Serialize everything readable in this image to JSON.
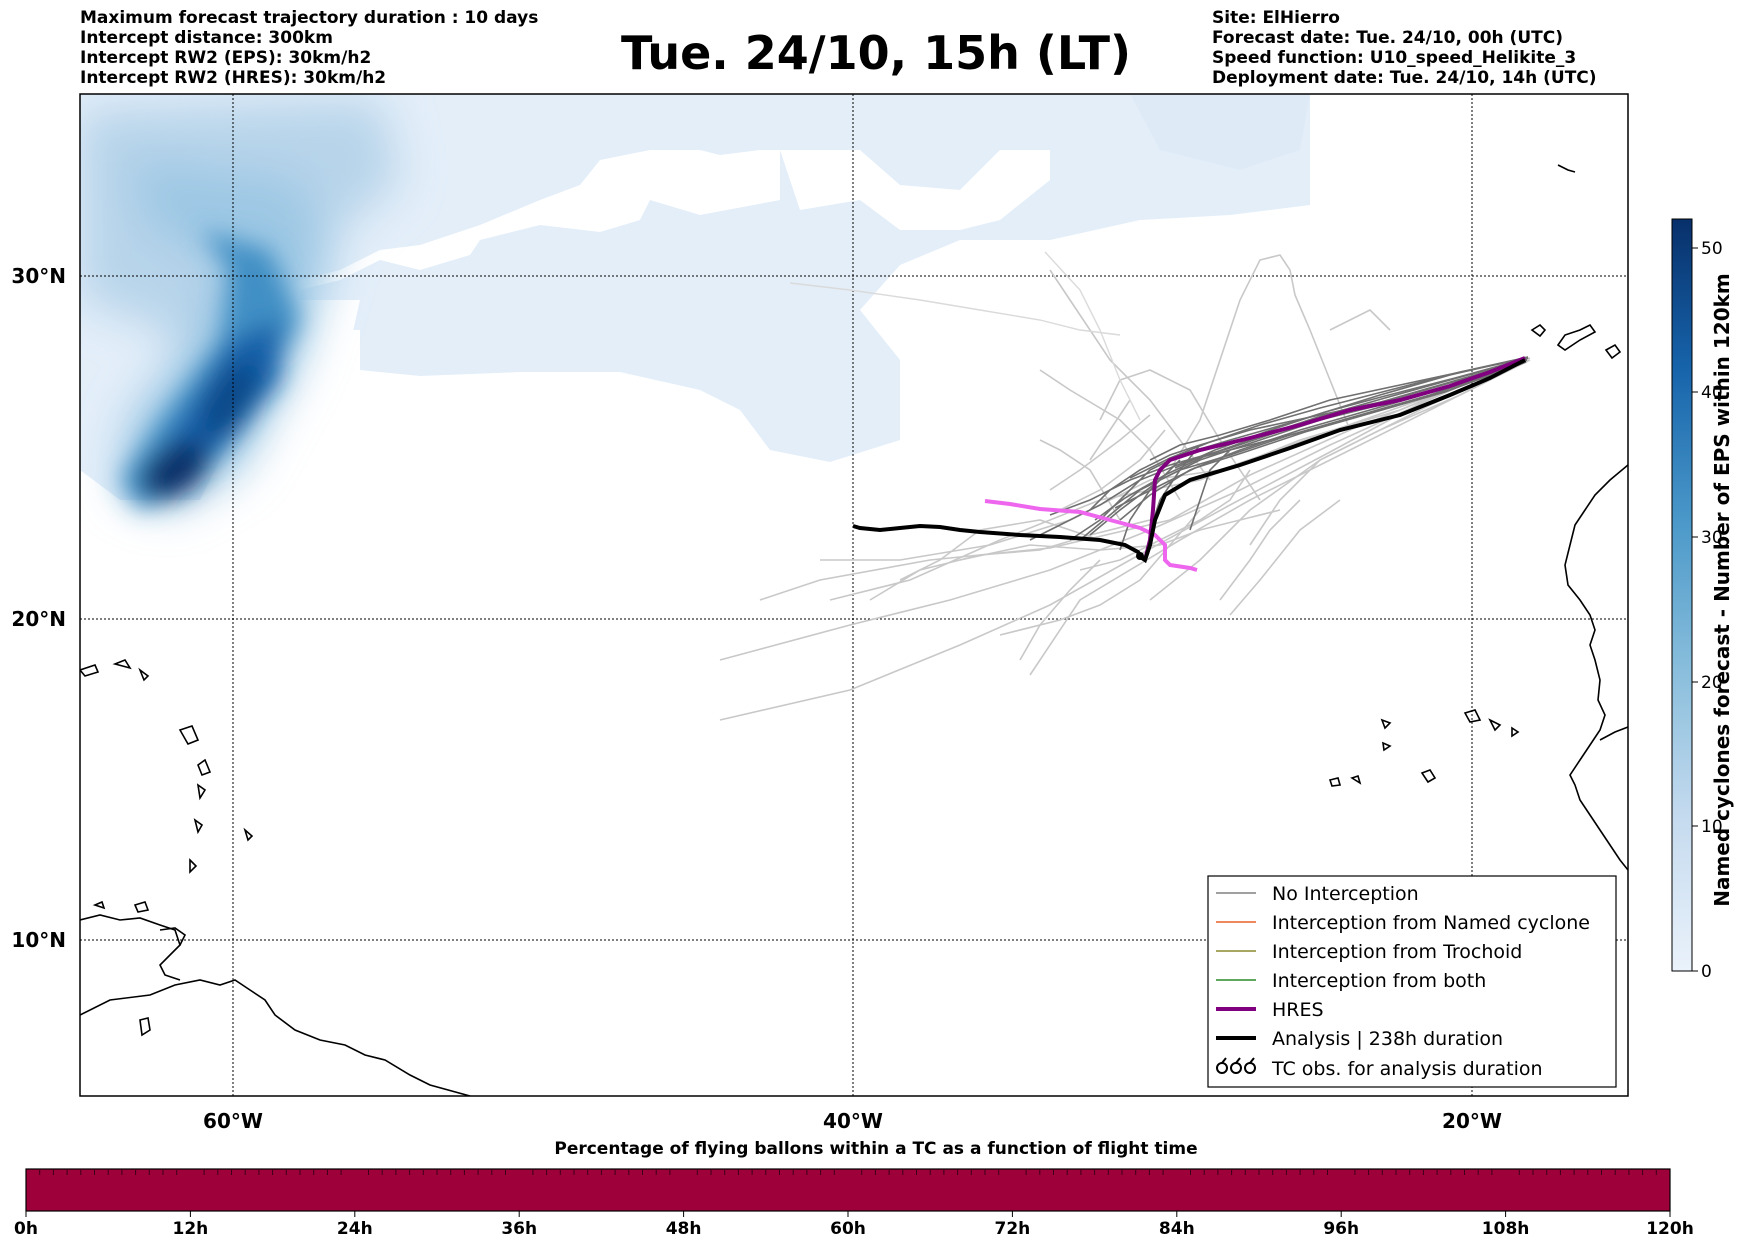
{
  "header": {
    "left_lines": [
      "Maximum forecast trajectory duration : 10 days",
      "Intercept distance: 300km",
      "Intercept RW2 (EPS):  30km/h2",
      "Intercept RW2 (HRES): 30km/h2"
    ],
    "title": "Tue. 24/10, 15h (LT)",
    "right_lines": [
      "Site: ElHierro",
      "Forecast date: Tue. 24/10, 00h (UTC)",
      "Speed function: U10_speed_Helikite_3",
      "Deployment date: Tue. 24/10, 14h (UTC)"
    ]
  },
  "map": {
    "lon_labels": [
      "60°W",
      "40°W",
      "20°W"
    ],
    "lat_labels": [
      "30°N",
      "20°N",
      "10°N"
    ],
    "colors": {
      "ensemble_gray": "#808080",
      "ensemble_light": "#c8c8c8",
      "hres": "#800080",
      "analysis": "#000000",
      "hres_alt": "#ee66ee"
    }
  },
  "legend": {
    "items": [
      {
        "label": "No Interception",
        "color": "#808080",
        "style": "thin"
      },
      {
        "label": "Interception from Named cyclone",
        "color": "#e8602a",
        "style": "thin"
      },
      {
        "label": "Interception from Trochoid",
        "color": "#8b8b30",
        "style": "thin"
      },
      {
        "label": "Interception from both",
        "color": "#2a8a2a",
        "style": "thin"
      },
      {
        "label": "HRES",
        "color": "#800080",
        "style": "thick"
      },
      {
        "label": "Analysis | 238h duration",
        "color": "#000000",
        "style": "thick"
      },
      {
        "label": "TC obs. for analysis duration",
        "color": "#000000",
        "style": "tc"
      }
    ]
  },
  "colorbar": {
    "title": "Named cyclones forecast - Number of EPS within 120km",
    "ticks": [
      "0",
      "10",
      "20",
      "30",
      "40",
      "50"
    ],
    "range": [
      0,
      52
    ]
  },
  "bottom_bar": {
    "title": "Percentage of flying ballons within a TC as a function of flight time",
    "ticks": [
      "0h",
      "12h",
      "24h",
      "36h",
      "48h",
      "60h",
      "72h",
      "84h",
      "96h",
      "108h",
      "120h"
    ],
    "fill_color": "#9e003a"
  }
}
